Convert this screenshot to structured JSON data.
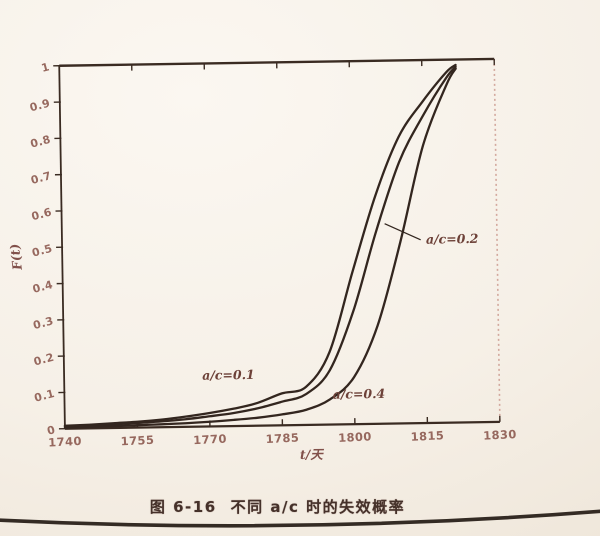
{
  "caption": {
    "figure_no": "图 6-16",
    "text": "不同 a/c 时的失效概率"
  },
  "colors": {
    "ink": "#33261f",
    "axis": "#3a2b22",
    "tick_text": "#8a564c",
    "annotation_text": "#6d4138",
    "right_border": "#c9968b",
    "paper": "#f6f0e7",
    "page_edge": "#241a14"
  },
  "chart_data": {
    "type": "line",
    "title": "",
    "xlabel": "t/天",
    "ylabel": "F(t)",
    "xlim": [
      1740,
      1830
    ],
    "ylim": [
      0,
      1
    ],
    "grid": false,
    "legend_position": "inline-annotations",
    "x_ticks": [
      {
        "v": 1740,
        "label": "1740"
      },
      {
        "v": 1755,
        "label": "1755"
      },
      {
        "v": 1770,
        "label": "1770"
      },
      {
        "v": 1785,
        "label": "1785"
      },
      {
        "v": 1800,
        "label": "1800"
      },
      {
        "v": 1815,
        "label": "1815"
      },
      {
        "v": 1830,
        "label": "1830"
      }
    ],
    "y_ticks": [
      {
        "v": 1.0,
        "label": "1"
      },
      {
        "v": 0.9,
        "label": "0.9"
      },
      {
        "v": 0.8,
        "label": "0.8"
      },
      {
        "v": 0.7,
        "label": "0.7"
      },
      {
        "v": 0.6,
        "label": "0.6"
      },
      {
        "v": 0.5,
        "label": "0.5"
      },
      {
        "v": 0.4,
        "label": "0.4"
      },
      {
        "v": 0.3,
        "label": "0.3"
      },
      {
        "v": 0.2,
        "label": "0.2"
      },
      {
        "v": 0.1,
        "label": "0.1"
      },
      {
        "v": 0.0,
        "label": "0"
      }
    ],
    "x": [
      1740,
      1745,
      1750,
      1755,
      1760,
      1765,
      1770,
      1775,
      1780,
      1785,
      1790,
      1795,
      1800,
      1805,
      1810,
      1815,
      1820,
      1822
    ],
    "series": [
      {
        "name": "a/c=0.1",
        "values": [
          0.008,
          0.01,
          0.013,
          0.016,
          0.021,
          0.028,
          0.037,
          0.048,
          0.063,
          0.088,
          0.105,
          0.2,
          0.42,
          0.63,
          0.79,
          0.885,
          0.965,
          0.985
        ]
      },
      {
        "name": "a/c=0.2",
        "values": [
          0.006,
          0.0075,
          0.01,
          0.013,
          0.016,
          0.021,
          0.028,
          0.036,
          0.048,
          0.065,
          0.085,
          0.15,
          0.31,
          0.53,
          0.72,
          0.845,
          0.95,
          0.98
        ]
      },
      {
        "name": "a/c=0.4",
        "values": [
          0.003,
          0.004,
          0.005,
          0.0065,
          0.008,
          0.01,
          0.013,
          0.017,
          0.022,
          0.03,
          0.042,
          0.07,
          0.13,
          0.27,
          0.5,
          0.765,
          0.93,
          0.975
        ]
      }
    ],
    "annotations": [
      {
        "text": "a/c=0.1",
        "x": 1774,
        "y": 0.14,
        "anchor": "middle"
      },
      {
        "text": "a/c=0.2",
        "x": 1815.3,
        "y": 0.505,
        "anchor": "start",
        "leader": {
          "x1": 1806.8,
          "y1": 0.551,
          "x2": 1814.2,
          "y2": 0.505
        }
      },
      {
        "text": "a/c=0.4",
        "x": 1795.5,
        "y": 0.082,
        "anchor": "start"
      }
    ]
  }
}
